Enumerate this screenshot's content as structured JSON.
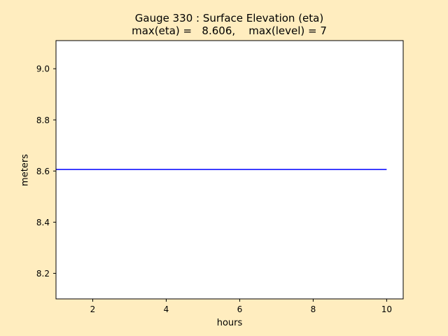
{
  "chart_data": {
    "type": "line",
    "title": "Gauge 330 : Surface Elevation (eta)",
    "subtitle": "max(eta) =   8.606,    max(level) = 7",
    "xlabel": "hours",
    "ylabel": "meters",
    "xlim": [
      1.0,
      10.45
    ],
    "ylim": [
      8.1,
      9.11
    ],
    "xticks": [
      2,
      4,
      6,
      8,
      10
    ],
    "yticks": [
      8.2,
      8.4,
      8.6,
      8.8,
      9.0
    ],
    "xtick_labels": [
      "2",
      "4",
      "6",
      "8",
      "10"
    ],
    "ytick_labels": [
      "8.2",
      "8.4",
      "8.6",
      "8.8",
      "9.0"
    ],
    "grid": false,
    "series": [
      {
        "x": [
          1.0,
          10.0
        ],
        "y": [
          8.606,
          8.606
        ],
        "color": "#0000ff"
      }
    ]
  },
  "colors": {
    "figure_background": "#ffedbf",
    "plot_background": "#ffffff",
    "line": "#0000ff"
  }
}
